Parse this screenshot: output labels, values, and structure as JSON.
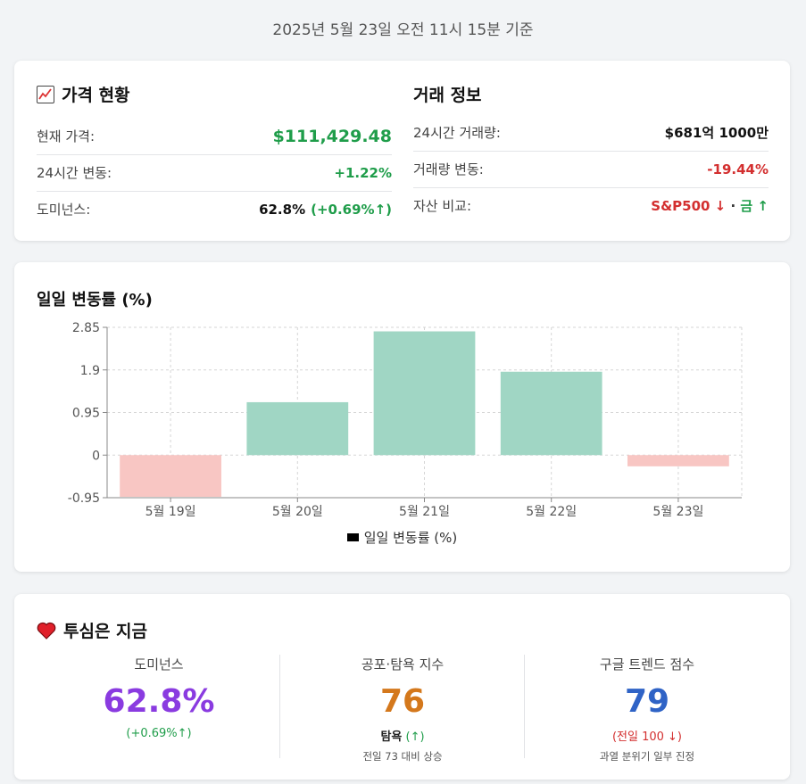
{
  "timestamp": "2025년 5월 23일 오전 11시 15분 기준",
  "price_section": {
    "title": "가격 현황",
    "icon": "chart-up-icon",
    "current_price_label": "현재 가격:",
    "current_price_value": "$111,429.48",
    "change_24h_label": "24시간 변동:",
    "change_24h_value": "+1.22%",
    "dominance_label": "도미넌스:",
    "dominance_value": "62.8%",
    "dominance_change": "(+0.69%↑)"
  },
  "trade_section": {
    "title": "거래 정보",
    "volume_label": "24시간 거래량:",
    "volume_value": "$681억 1000만",
    "volume_change_label": "거래량 변동:",
    "volume_change_value": "-19.44%",
    "asset_compare_label": "자산 비교:",
    "asset_compare_sp": "S&P500 ↓",
    "asset_compare_sep": " · ",
    "asset_compare_gold": "금 ↑"
  },
  "chart_data": {
    "type": "bar",
    "title": "일일 변동률 (%)",
    "categories": [
      "5월 19일",
      "5월 20일",
      "5월 21일",
      "5월 22일",
      "5월 23일"
    ],
    "series": [
      {
        "name": "일일 변동률 (%)",
        "values": [
          -0.93,
          1.18,
          2.76,
          1.86,
          -0.25
        ]
      }
    ],
    "yticks": [
      -0.95,
      0,
      0.95,
      1.9,
      2.85
    ],
    "ytick_labels": [
      "-0.95",
      "0",
      "0.95",
      "1.9",
      "2.85"
    ],
    "ylim": [
      -0.95,
      2.85
    ],
    "grid": true,
    "legend_position": "bottom",
    "colors": {
      "positive": "#a0d6c4",
      "negative": "#f8c6c3"
    }
  },
  "sentiment": {
    "title": "투심은 지금",
    "icon": "heart-icon",
    "metrics": [
      {
        "label": "도미넌스",
        "value": "62.8%",
        "sub": "(+0.69%↑)",
        "note": "",
        "color": "#8a3be0",
        "sub_color": "#1f9d4a"
      },
      {
        "label": "공포·탐욕 지수",
        "value": "76",
        "sub_label": "탐욕",
        "sub": "(↑)",
        "note": "전일 73 대비 상승",
        "color": "#d4781c",
        "sub_color": "#1f9d4a"
      },
      {
        "label": "구글 트렌드 점수",
        "value": "79",
        "sub": "(전일 100 ↓)",
        "note": "과열 분위기 일부 진정",
        "color": "#2f63c6",
        "sub_color": "#d32f2f"
      }
    ]
  }
}
